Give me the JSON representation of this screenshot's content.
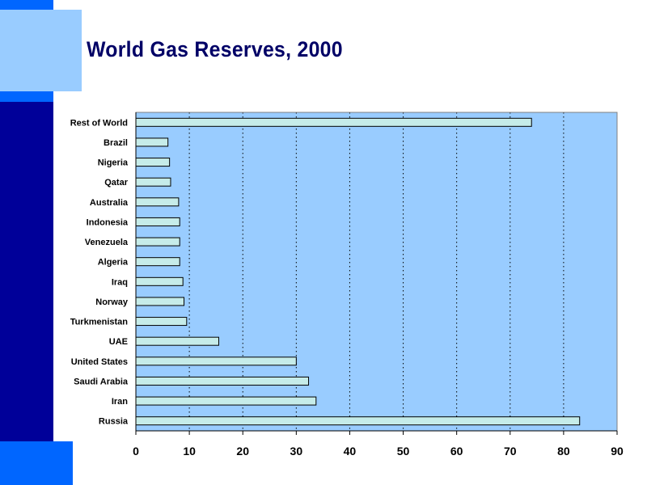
{
  "page": {
    "title": "World Gas Reserves, 2000"
  },
  "colors": {
    "navy": "#000099",
    "accent_blue": "#0066ff",
    "light_blue": "#99ccff",
    "plot_background": "#99ccff",
    "bar_fill": "#c6ece9",
    "title_color": "#000066"
  },
  "chart_data": {
    "type": "bar",
    "orientation": "horizontal",
    "title": "World Gas Reserves, 2000",
    "xlabel": "",
    "ylabel": "",
    "categories": [
      "Russia",
      "Iran",
      "Saudi Arabia",
      "United States",
      "UAE",
      "Turkmenistan",
      "Norway",
      "Iraq",
      "Algeria",
      "Venezuela",
      "Indonesia",
      "Australia",
      "Qatar",
      "Nigeria",
      "Brazil",
      "Rest of World"
    ],
    "values": [
      83,
      33.7,
      32.3,
      30,
      15.5,
      9.5,
      9,
      8.8,
      8.2,
      8.2,
      8.2,
      8,
      6.5,
      6.3,
      6,
      74
    ],
    "xlim": [
      0,
      90
    ],
    "xticks": [
      "0",
      "10",
      "20",
      "30",
      "40",
      "50",
      "60",
      "70",
      "80",
      "90"
    ],
    "grid": "vertical dotted",
    "legend": "none"
  }
}
